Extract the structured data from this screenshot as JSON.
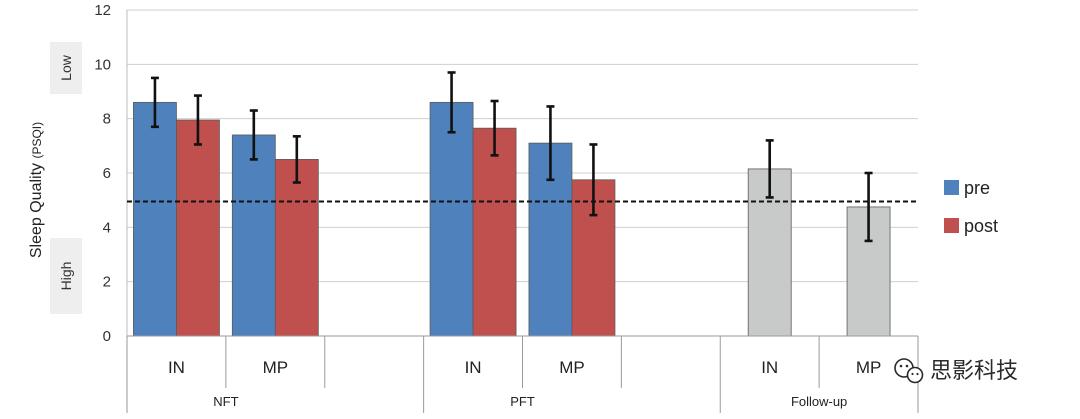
{
  "chart_data": {
    "type": "bar",
    "ylabel": "Sleep Quality",
    "ylabel_unit": "(PSQI)",
    "ylim": [
      0,
      12
    ],
    "yticks": [
      0,
      2,
      4,
      6,
      8,
      10,
      12
    ],
    "grid": true,
    "legend_position": "right",
    "reference_line": 4.95,
    "side_labels": {
      "top": "Low",
      "bottom": "High"
    },
    "categories": [
      {
        "group": "NFT",
        "label": "IN"
      },
      {
        "group": "NFT",
        "label": "MP"
      },
      {
        "group": "PFT",
        "label": "IN"
      },
      {
        "group": "PFT",
        "label": "MP"
      },
      {
        "group": "Follow-up",
        "label": "IN"
      },
      {
        "group": "Follow-up",
        "label": "MP"
      }
    ],
    "groups": [
      "NFT",
      "PFT",
      "Follow-up"
    ],
    "series": [
      {
        "name": "pre",
        "color": "#4f81bd",
        "values": [
          8.6,
          7.4,
          8.6,
          7.1,
          null,
          null
        ],
        "errors": [
          0.9,
          0.9,
          1.1,
          1.35,
          null,
          null
        ]
      },
      {
        "name": "post",
        "color": "#c0504d",
        "values": [
          7.95,
          6.5,
          7.65,
          5.75,
          null,
          null
        ],
        "errors": [
          0.9,
          0.85,
          1.0,
          1.3,
          null,
          null
        ]
      },
      {
        "color": "#c8cac9",
        "values": [
          null,
          null,
          null,
          null,
          6.15,
          4.75
        ],
        "errors": [
          null,
          null,
          null,
          null,
          1.05,
          1.25
        ]
      }
    ]
  },
  "watermark": {
    "text": "思影科技",
    "icon": "wechat-icon"
  }
}
